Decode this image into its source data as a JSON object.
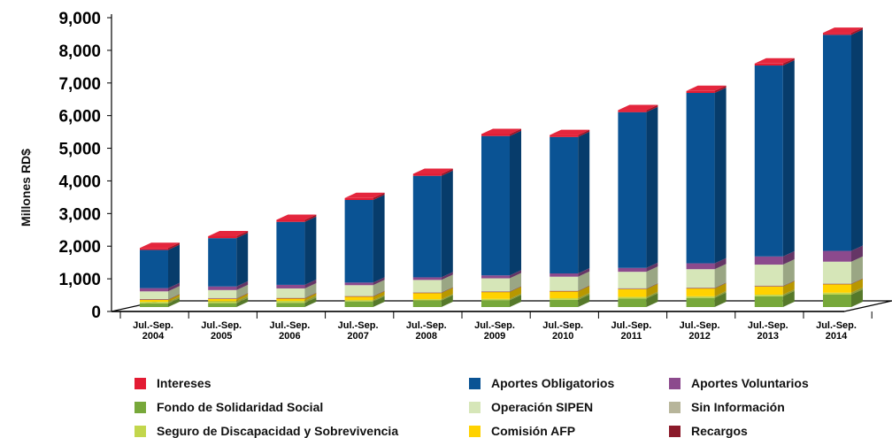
{
  "chart_data": {
    "type": "bar",
    "stacked": true,
    "three_d": true,
    "ylabel": "Millones RD$",
    "ylim": [
      0,
      9000
    ],
    "yticks": [
      "0",
      "1,000",
      "2,000",
      "3,000",
      "4,000",
      "5,000",
      "6,000",
      "7,000",
      "8,000",
      "9,000"
    ],
    "categories": [
      [
        "Jul.-Sep.",
        "2004"
      ],
      [
        "Jul.-Sep.",
        "2005"
      ],
      [
        "Jul.-Sep.",
        "2006"
      ],
      [
        "Jul.-Sep.",
        "2007"
      ],
      [
        "Jul.-Sep.",
        "2008"
      ],
      [
        "Jul.-Sep.",
        "2009"
      ],
      [
        "Jul.-Sep.",
        "2010"
      ],
      [
        "Jul.-Sep.",
        "2011"
      ],
      [
        "Jul.-Sep.",
        "2012"
      ],
      [
        "Jul.-Sep.",
        "2013"
      ],
      [
        "Jul.-Sep.",
        "2014"
      ]
    ],
    "grid": false,
    "legend_position": "bottom",
    "series": [
      {
        "name": "Fondo de Solidaridad Social",
        "color": "#77a83a",
        "values": [
          110,
          120,
          130,
          170,
          200,
          210,
          220,
          260,
          280,
          330,
          380
        ]
      },
      {
        "name": "Seguro de Discapacidad y Sobrevivencia",
        "color": "#c2d64c",
        "values": [
          50,
          60,
          60,
          40,
          40,
          40,
          50,
          50,
          50,
          50,
          60
        ]
      },
      {
        "name": "Comisión AFP",
        "color": "#ffd200",
        "values": [
          60,
          70,
          70,
          110,
          190,
          210,
          210,
          240,
          240,
          250,
          260
        ]
      },
      {
        "name": "Recargos",
        "color": "#8b1a2a",
        "values": [
          10,
          10,
          10,
          10,
          10,
          10,
          10,
          10,
          10,
          10,
          10
        ]
      },
      {
        "name": "Sin Información",
        "color": "#b7b59a",
        "values": [
          20,
          20,
          20,
          20,
          20,
          20,
          20,
          20,
          20,
          20,
          20
        ]
      },
      {
        "name": "Operación SIPEN",
        "color": "#d6e6b8",
        "values": [
          230,
          240,
          280,
          320,
          370,
          390,
          420,
          500,
          560,
          640,
          660
        ]
      },
      {
        "name": "Aportes Voluntarios",
        "color": "#8c4a8d",
        "values": [
          100,
          110,
          110,
          80,
          80,
          90,
          100,
          120,
          180,
          250,
          330
        ]
      },
      {
        "name": "Aportes Obligatorios",
        "color": "#0a5394",
        "values": [
          1170,
          1480,
          1930,
          2530,
          3110,
          4270,
          4180,
          4770,
          5220,
          5850,
          6620
        ]
      },
      {
        "name": "Intereses",
        "color": "#e31b33",
        "values": [
          60,
          60,
          60,
          60,
          60,
          60,
          60,
          60,
          60,
          60,
          60
        ]
      }
    ]
  },
  "legend": [
    {
      "label": "Intereses",
      "color": "#e31b33"
    },
    {
      "label": "Aportes Obligatorios",
      "color": "#0a5394"
    },
    {
      "label": "Aportes Voluntarios",
      "color": "#8c4a8d"
    },
    {
      "label": "Fondo de Solidaridad Social",
      "color": "#77a83a"
    },
    {
      "label": "Operación SIPEN",
      "color": "#d6e6b8"
    },
    {
      "label": "Sin Información",
      "color": "#b7b59a"
    },
    {
      "label": "Seguro de Discapacidad y Sobrevivencia",
      "color": "#c2d64c"
    },
    {
      "label": "Comisión AFP",
      "color": "#ffd200"
    },
    {
      "label": "Recargos",
      "color": "#8b1a2a"
    }
  ]
}
